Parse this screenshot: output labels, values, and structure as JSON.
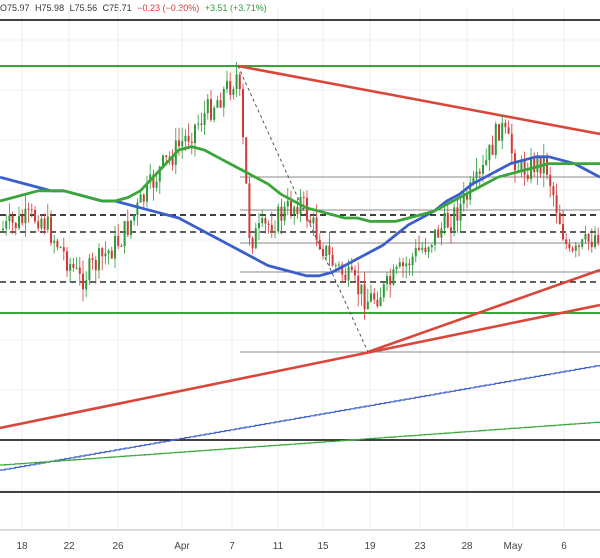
{
  "header": {
    "open": "O75.97",
    "high": "H75.98",
    "low": "L75.56",
    "close": "C75.71",
    "change": "−0.23 (−0.30%)",
    "change_extra": "+3.51 (+3.71%)"
  },
  "colors": {
    "candle_up": "#2e9b3a",
    "candle_down": "#d23a3a",
    "ma_fast": "#3a5fcd",
    "ma_slow": "#3aa63a",
    "trend": "#d9473a",
    "level": "#000000"
  },
  "chart_data": {
    "type": "line",
    "x_ticks": [
      "18",
      "22",
      "26",
      "Apr",
      "7",
      "11",
      "15",
      "19",
      "23",
      "28",
      "May",
      "6"
    ],
    "series": [
      {
        "values": [
          0.62,
          0.61,
          0.6,
          0.59,
          0.58,
          0.58,
          0.57,
          0.56,
          0.55,
          0.55,
          0.54,
          0.53,
          0.52,
          0.51,
          0.5,
          0.48,
          0.46,
          0.44,
          0.42,
          0.4,
          0.38,
          0.36,
          0.35,
          0.34,
          0.33,
          0.33,
          0.34,
          0.36,
          0.38,
          0.4,
          0.42,
          0.45,
          0.48,
          0.5,
          0.52,
          0.55,
          0.57,
          0.6,
          0.62,
          0.64,
          0.66,
          0.67,
          0.68,
          0.68,
          0.67,
          0.66,
          0.64,
          0.62
        ]
      },
      {
        "values": [
          0.55,
          0.56,
          0.57,
          0.58,
          0.58,
          0.58,
          0.57,
          0.56,
          0.55,
          0.55,
          0.56,
          0.58,
          0.62,
          0.66,
          0.7,
          0.71,
          0.7,
          0.68,
          0.66,
          0.64,
          0.62,
          0.6,
          0.57,
          0.55,
          0.53,
          0.52,
          0.51,
          0.5,
          0.5,
          0.49,
          0.49,
          0.49,
          0.5,
          0.51,
          0.52,
          0.54,
          0.56,
          0.58,
          0.6,
          0.62,
          0.63,
          0.64,
          0.65,
          0.66,
          0.66,
          0.66,
          0.66,
          0.66
        ]
      }
    ]
  }
}
